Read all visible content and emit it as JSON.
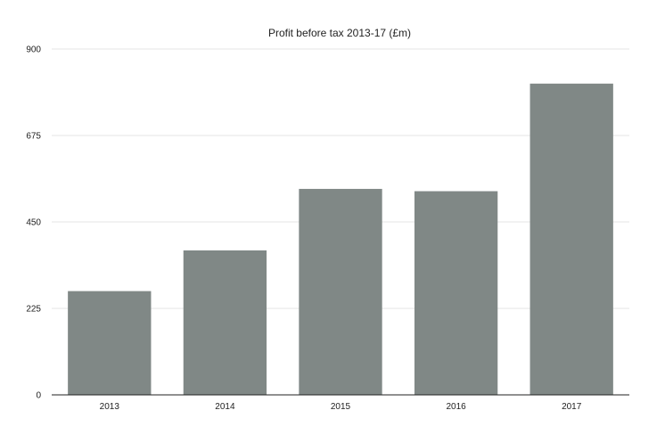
{
  "chart_data": {
    "type": "bar",
    "title": "Profit before tax 2013-17 (£m)",
    "xlabel": "",
    "ylabel": "",
    "categories": [
      "2013",
      "2014",
      "2015",
      "2016",
      "2017"
    ],
    "values": [
      270,
      376,
      536,
      530,
      810
    ],
    "ylim": [
      0,
      900
    ],
    "yticks": [
      0,
      225,
      450,
      675,
      900
    ],
    "grid": true,
    "legend": "none",
    "colors": {
      "bar": "#808886",
      "axis": "#222222",
      "grid": "#e6e6e6",
      "text": "#222222"
    }
  }
}
